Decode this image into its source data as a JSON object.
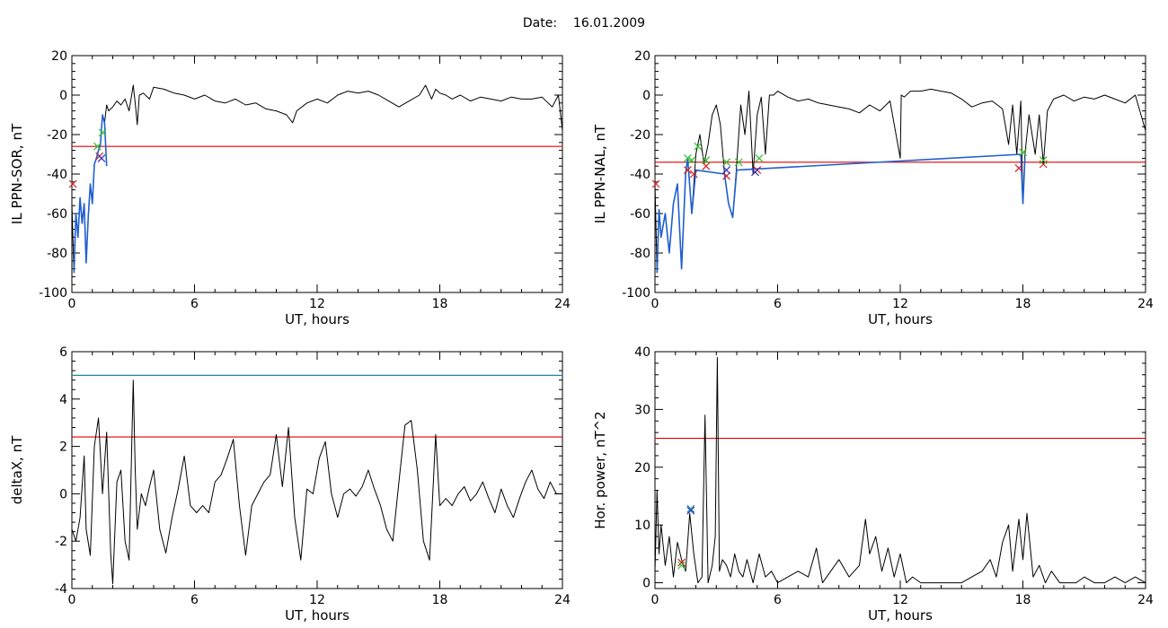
{
  "header": {
    "date_label": "Date:",
    "date_value": "16.01.2009"
  },
  "chart_data": [
    {
      "type": "line",
      "ylabel": "IL PPN-SOR, nT",
      "xlabel": "UT, hours",
      "xlim": [
        0,
        24
      ],
      "ylim": [
        -100,
        20
      ],
      "xticks": [
        0,
        6,
        12,
        18,
        24
      ],
      "yticks": [
        -100,
        -80,
        -60,
        -40,
        -20,
        0,
        20
      ],
      "threshold": {
        "value": -26,
        "color": "#e00000"
      },
      "series": [
        {
          "color": "#000000",
          "x": [
            0,
            0.1,
            0.2,
            0.3,
            0.4,
            0.5,
            0.6,
            0.7,
            0.8,
            0.9,
            1.0,
            1.1,
            1.2,
            1.3,
            1.4,
            1.5,
            1.6,
            1.7,
            1.8,
            2.0,
            2.2,
            2.4,
            2.6,
            2.8,
            3.0,
            3.1,
            3.2,
            3.3,
            3.5,
            3.8,
            4.0,
            4.5,
            5.0,
            5.5,
            6.0,
            6.5,
            7.0,
            7.5,
            8.0,
            8.5,
            9.0,
            9.5,
            10.0,
            10.5,
            10.8,
            11.0,
            11.5,
            12.0,
            12.5,
            13.0,
            13.5,
            14.0,
            14.5,
            15.0,
            15.5,
            16.0,
            16.5,
            17.0,
            17.3,
            17.6,
            17.8,
            18.0,
            18.3,
            18.6,
            19.0,
            19.5,
            20.0,
            20.5,
            21.0,
            21.5,
            22.0,
            22.5,
            23.0,
            23.5,
            23.8,
            24.0
          ],
          "y": [
            -55,
            -90,
            -60,
            -72,
            -52,
            -65,
            -55,
            -85,
            -62,
            -45,
            -55,
            -35,
            -32,
            -28,
            -25,
            -10,
            -14,
            -5,
            -8,
            -6,
            -3,
            -5,
            -2,
            -8,
            5,
            -4,
            -15,
            0,
            1,
            -2,
            4,
            3,
            1,
            0,
            -2,
            0,
            -3,
            -4,
            -2,
            -5,
            -4,
            -7,
            -8,
            -10,
            -14,
            -8,
            -4,
            -2,
            -4,
            0,
            2,
            1,
            2,
            0,
            -3,
            -6,
            -3,
            0,
            5,
            -2,
            3,
            1,
            0,
            -2,
            0,
            -3,
            -1,
            -2,
            -3,
            -1,
            -2,
            -2,
            -1,
            -6,
            0,
            -18
          ]
        },
        {
          "color": "#1f5fd0",
          "x": [
            0.1,
            0.2,
            0.3,
            0.4,
            0.5,
            0.6,
            0.7,
            0.8,
            0.9,
            1.0,
            1.1,
            1.2,
            1.3,
            1.4,
            1.5,
            1.6,
            1.7
          ],
          "y": [
            -90,
            -60,
            -72,
            -52,
            -65,
            -55,
            -85,
            -62,
            -45,
            -55,
            -35,
            -32,
            -28,
            -25,
            -10,
            -14,
            -36
          ]
        }
      ],
      "markers": [
        {
          "color": "#d02020",
          "x": 0.05,
          "y": -45
        },
        {
          "color": "#d02020",
          "x": 1.35,
          "y": -31
        },
        {
          "color": "#30c030",
          "x": 1.25,
          "y": -26
        },
        {
          "color": "#30c030",
          "x": 1.5,
          "y": -19
        },
        {
          "color": "#3030c0",
          "x": 1.45,
          "y": -32
        }
      ]
    },
    {
      "type": "line",
      "ylabel": "IL PPN-NAL, nT",
      "xlabel": "UT, hours",
      "xlim": [
        0,
        24
      ],
      "ylim": [
        -100,
        20
      ],
      "xticks": [
        0,
        6,
        12,
        18,
        24
      ],
      "yticks": [
        -100,
        -80,
        -60,
        -40,
        -20,
        0,
        20
      ],
      "threshold": {
        "value": -34,
        "color": "#e00000"
      },
      "series": [
        {
          "color": "#000000",
          "x": [
            0,
            0.1,
            0.2,
            0.3,
            0.5,
            0.7,
            0.9,
            1.1,
            1.3,
            1.5,
            1.6,
            1.8,
            2.0,
            2.2,
            2.4,
            2.6,
            2.8,
            3.0,
            3.2,
            3.4,
            3.6,
            3.8,
            4.0,
            4.2,
            4.4,
            4.6,
            4.8,
            5.0,
            5.2,
            5.4,
            5.6,
            5.8,
            6.0,
            6.5,
            7.0,
            7.5,
            8.0,
            8.5,
            9.0,
            9.5,
            10.0,
            10.5,
            11.0,
            11.5,
            12.0,
            12.05,
            12.2,
            12.5,
            13.0,
            13.5,
            14.0,
            14.5,
            15.0,
            15.5,
            16.0,
            16.5,
            17.0,
            17.3,
            17.5,
            17.7,
            17.9,
            18.0,
            18.1,
            18.3,
            18.6,
            18.8,
            19.0,
            19.2,
            19.5,
            20.0,
            20.5,
            21.0,
            21.5,
            22.0,
            22.5,
            23.0,
            23.5,
            24.0
          ],
          "y": [
            -45,
            -90,
            -58,
            -72,
            -60,
            -80,
            -55,
            -45,
            -88,
            -40,
            -32,
            -60,
            -30,
            -20,
            -35,
            -25,
            -10,
            -5,
            -15,
            -40,
            -55,
            -62,
            -35,
            -5,
            -20,
            2,
            -40,
            -10,
            -1,
            -30,
            0,
            0,
            2,
            -1,
            -3,
            -2,
            -4,
            -5,
            -6,
            -7,
            -9,
            -5,
            -8,
            -3,
            -32,
            0,
            -1,
            2,
            2,
            3,
            2,
            1,
            -2,
            -6,
            -4,
            -3,
            -7,
            -25,
            -5,
            -30,
            -3,
            -55,
            -30,
            -10,
            -30,
            -10,
            -35,
            -8,
            -2,
            0,
            -3,
            -1,
            -2,
            0,
            -2,
            -4,
            0,
            -18
          ]
        },
        {
          "color": "#1f5fd0",
          "x": [
            0.1,
            0.2,
            0.3,
            0.5,
            0.7,
            0.9,
            1.1,
            1.3,
            1.5,
            1.6,
            1.8,
            2.0,
            3.4,
            3.6,
            3.8,
            4.0,
            17.9,
            18.0,
            18.1
          ],
          "y": [
            -90,
            -58,
            -72,
            -60,
            -80,
            -55,
            -45,
            -88,
            -40,
            -32,
            -60,
            -38,
            -40,
            -55,
            -62,
            -38,
            -30,
            -55,
            -32
          ]
        }
      ],
      "markers": [
        {
          "color": "#d02020",
          "x": 0.05,
          "y": -45
        },
        {
          "color": "#d02020",
          "x": 1.6,
          "y": -38
        },
        {
          "color": "#d02020",
          "x": 1.9,
          "y": -40
        },
        {
          "color": "#d02020",
          "x": 2.5,
          "y": -36
        },
        {
          "color": "#d02020",
          "x": 3.5,
          "y": -41
        },
        {
          "color": "#d02020",
          "x": 5.0,
          "y": -38
        },
        {
          "color": "#d02020",
          "x": 17.8,
          "y": -37
        },
        {
          "color": "#d02020",
          "x": 19.0,
          "y": -35
        },
        {
          "color": "#30c030",
          "x": 1.6,
          "y": -32
        },
        {
          "color": "#30c030",
          "x": 1.8,
          "y": -33
        },
        {
          "color": "#30c030",
          "x": 2.1,
          "y": -26
        },
        {
          "color": "#30c030",
          "x": 2.5,
          "y": -33
        },
        {
          "color": "#30c030",
          "x": 3.5,
          "y": -34
        },
        {
          "color": "#30c030",
          "x": 4.1,
          "y": -34
        },
        {
          "color": "#30c030",
          "x": 5.1,
          "y": -32
        },
        {
          "color": "#30c030",
          "x": 18.0,
          "y": -29
        },
        {
          "color": "#30c030",
          "x": 19.0,
          "y": -33
        },
        {
          "color": "#3030c0",
          "x": 3.5,
          "y": -38
        },
        {
          "color": "#3030c0",
          "x": 4.9,
          "y": -39
        }
      ]
    },
    {
      "type": "line",
      "ylabel": "deltaX, nT",
      "xlabel": "UT, hours",
      "xlim": [
        0,
        24
      ],
      "ylim": [
        -4,
        6
      ],
      "xticks": [
        0,
        6,
        12,
        18,
        24
      ],
      "yticks": [
        -4,
        -2,
        0,
        2,
        4,
        6
      ],
      "threshold": {
        "value": 2.4,
        "color": "#e00000"
      },
      "threshold2": {
        "value": 5.0,
        "color": "#1a8aa0"
      },
      "series": [
        {
          "color": "#000000",
          "x": [
            0,
            0.2,
            0.4,
            0.6,
            0.7,
            0.9,
            1.1,
            1.3,
            1.5,
            1.7,
            1.9,
            2.0,
            2.2,
            2.4,
            2.6,
            2.8,
            3.0,
            3.1,
            3.2,
            3.4,
            3.6,
            3.8,
            4.0,
            4.3,
            4.6,
            4.9,
            5.2,
            5.5,
            5.8,
            6.1,
            6.4,
            6.7,
            7.0,
            7.3,
            7.6,
            7.9,
            8.2,
            8.5,
            8.8,
            9.1,
            9.4,
            9.7,
            10.0,
            10.3,
            10.6,
            10.9,
            11.2,
            11.5,
            11.8,
            12.1,
            12.4,
            12.7,
            13.0,
            13.3,
            13.6,
            13.9,
            14.2,
            14.5,
            14.8,
            15.1,
            15.4,
            15.7,
            16.0,
            16.3,
            16.6,
            16.9,
            17.2,
            17.5,
            17.8,
            18.0,
            18.3,
            18.6,
            18.9,
            19.2,
            19.5,
            19.8,
            20.1,
            20.4,
            20.7,
            21.0,
            21.3,
            21.6,
            21.9,
            22.2,
            22.5,
            22.8,
            23.1,
            23.4,
            23.7,
            24.0
          ],
          "y": [
            -1.5,
            -2.0,
            -1.0,
            1.6,
            -1.5,
            -2.6,
            2.0,
            3.2,
            0.0,
            2.6,
            -2.5,
            -3.8,
            0.5,
            1.0,
            -2.0,
            -2.8,
            4.8,
            1.0,
            -1.5,
            0.0,
            -0.5,
            0.3,
            1.0,
            -1.5,
            -2.5,
            -1.0,
            0.2,
            1.6,
            -0.5,
            -0.8,
            -0.5,
            -0.8,
            0.5,
            0.8,
            1.5,
            2.3,
            -0.5,
            -2.6,
            -0.5,
            0.0,
            0.5,
            0.8,
            2.5,
            0.3,
            2.8,
            -1.0,
            -2.8,
            0.2,
            0.0,
            1.5,
            2.2,
            0.0,
            -1.0,
            0.0,
            0.2,
            -0.1,
            0.3,
            1.0,
            0.2,
            -0.5,
            -1.5,
            -2.0,
            0.5,
            2.9,
            3.1,
            1.0,
            -2.0,
            -2.8,
            2.5,
            -0.5,
            -0.2,
            -0.5,
            0.0,
            0.3,
            -0.3,
            0.0,
            0.5,
            -0.2,
            -0.8,
            0.2,
            -0.5,
            -1.0,
            -0.2,
            0.5,
            1.0,
            0.2,
            -0.2,
            0.5,
            0.0,
            0.0
          ]
        }
      ],
      "markers": []
    },
    {
      "type": "line",
      "ylabel": "Hor. power, nT^2",
      "xlabel": "UT, hours",
      "xlim": [
        0,
        24
      ],
      "ylim": [
        -1,
        40
      ],
      "xticks": [
        0,
        6,
        12,
        18,
        24
      ],
      "yticks": [
        0,
        10,
        20,
        30,
        40
      ],
      "threshold": {
        "value": 25,
        "color": "#e00000"
      },
      "series": [
        {
          "color": "#000000",
          "x": [
            0,
            0.1,
            0.2,
            0.3,
            0.5,
            0.7,
            0.9,
            1.1,
            1.3,
            1.5,
            1.7,
            1.9,
            2.1,
            2.3,
            2.45,
            2.6,
            2.8,
            2.95,
            3.05,
            3.15,
            3.3,
            3.5,
            3.7,
            3.9,
            4.1,
            4.3,
            4.5,
            4.8,
            5.1,
            5.4,
            5.7,
            6.0,
            6.5,
            7.0,
            7.5,
            7.9,
            8.2,
            8.6,
            9.0,
            9.5,
            10.0,
            10.3,
            10.5,
            10.8,
            11.1,
            11.4,
            11.7,
            12.0,
            12.3,
            12.6,
            13.0,
            13.5,
            14.0,
            14.5,
            15.0,
            15.5,
            16.0,
            16.4,
            16.7,
            17.0,
            17.3,
            17.5,
            17.8,
            18.0,
            18.2,
            18.5,
            18.8,
            19.1,
            19.4,
            19.8,
            20.2,
            20.6,
            21.0,
            21.5,
            22.0,
            22.5,
            23.0,
            23.5,
            24.0
          ],
          "y": [
            2,
            16,
            5,
            10,
            3,
            8,
            1,
            7,
            4,
            2,
            12,
            5,
            0,
            1,
            29,
            0,
            3,
            8,
            39,
            2,
            4,
            3,
            1,
            5,
            2,
            1,
            4,
            0,
            5,
            1,
            2,
            0,
            1,
            2,
            1,
            6,
            0,
            2,
            4,
            1,
            3,
            11,
            5,
            8,
            2,
            6,
            1,
            5,
            0,
            1,
            0,
            0,
            0,
            0,
            0,
            1,
            2,
            4,
            1,
            7,
            10,
            2,
            11,
            4,
            12,
            1,
            3,
            0,
            2,
            0,
            0,
            0,
            1,
            0,
            0,
            1,
            0,
            1,
            0
          ]
        }
      ],
      "markers": [
        {
          "color": "#d02020",
          "x": 1.3,
          "y": 3.5
        },
        {
          "color": "#30c030",
          "x": 1.3,
          "y": 3
        },
        {
          "color": "#3030c0",
          "x": 1.75,
          "y": 12.5
        },
        {
          "color": "#1a8aa0",
          "x": 1.75,
          "y": 12.8
        }
      ]
    }
  ]
}
